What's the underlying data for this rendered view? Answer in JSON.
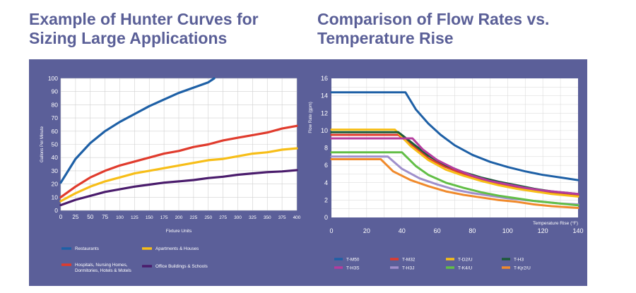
{
  "headings": {
    "left": [
      "Example of Hunter Curves for",
      "Sizing Large Applications"
    ],
    "right": [
      "Comparison of Flow Rates vs.",
      "Temperature Rise"
    ]
  },
  "chart_data": [
    {
      "type": "line",
      "xlabel": "Fixture Units",
      "ylabel": "Gallons Per Minute",
      "xlim": [
        0,
        400
      ],
      "ylim": [
        0,
        100
      ],
      "grid": true,
      "x_ticks": [
        "0",
        "25",
        "50",
        "75",
        "100",
        "125",
        "150",
        "175",
        "200",
        "225",
        "250",
        "275",
        "300",
        "325",
        "350",
        "375",
        "400"
      ],
      "y_ticks": [
        "0",
        "10",
        "20",
        "30",
        "40",
        "50",
        "60",
        "70",
        "80",
        "90",
        "100"
      ],
      "legend_position": "bottom",
      "series": [
        {
          "name": "Restaurants",
          "color": "#1e60a6",
          "x": [
            0,
            25,
            50,
            75,
            100,
            125,
            150,
            175,
            200,
            225,
            250,
            260
          ],
          "y": [
            21,
            39,
            51,
            60,
            67,
            73,
            79,
            84,
            89,
            93,
            97,
            100
          ]
        },
        {
          "name": "Hospitals, Nursing Homes, Dormitories, Hotels & Motels",
          "color": "#e03b2d",
          "x": [
            0,
            25,
            50,
            75,
            100,
            125,
            150,
            175,
            200,
            225,
            250,
            275,
            300,
            325,
            350,
            375,
            400
          ],
          "y": [
            10,
            18,
            25,
            30,
            34,
            37,
            40,
            43,
            45,
            48,
            50,
            53,
            55,
            57,
            59,
            62,
            64
          ]
        },
        {
          "name": "Apartments & Houses",
          "color": "#f7be18",
          "x": [
            0,
            25,
            50,
            75,
            100,
            125,
            150,
            175,
            200,
            225,
            250,
            275,
            300,
            325,
            350,
            375,
            400
          ],
          "y": [
            7,
            13,
            18,
            22,
            25,
            28,
            30,
            32,
            34,
            36,
            38,
            39,
            41,
            43,
            44,
            46,
            47
          ]
        },
        {
          "name": "Office Buildings & Schools",
          "color": "#4a1c6c",
          "x": [
            0,
            25,
            50,
            75,
            100,
            125,
            150,
            175,
            200,
            225,
            250,
            275,
            300,
            325,
            350,
            375,
            400
          ],
          "y": [
            4,
            8,
            11,
            14,
            16,
            18,
            19.5,
            21,
            22,
            23,
            24.5,
            25.5,
            27,
            28,
            29,
            29.5,
            30.5
          ]
        }
      ]
    },
    {
      "type": "line",
      "xlabel": "Temperature Rise (°F)",
      "ylabel": "Flow Rate (gpm)",
      "xlim": [
        0,
        140
      ],
      "ylim": [
        0,
        16
      ],
      "grid": true,
      "x_ticks": [
        "0",
        "20",
        "40",
        "60",
        "80",
        "100",
        "120",
        "140"
      ],
      "y_ticks": [
        "0",
        "2",
        "4",
        "6",
        "8",
        "10",
        "12",
        "14",
        "16"
      ],
      "legend_position": "bottom",
      "series": [
        {
          "name": "T-M50",
          "color": "#1e60a6",
          "x": [
            0,
            42,
            48,
            55,
            62,
            70,
            80,
            90,
            100,
            110,
            120,
            130,
            140
          ],
          "y": [
            14.4,
            14.4,
            12.4,
            10.8,
            9.5,
            8.3,
            7.2,
            6.4,
            5.8,
            5.3,
            4.9,
            4.6,
            4.3
          ]
        },
        {
          "name": "T-M32",
          "color": "#e03b2d",
          "x": [
            0,
            38,
            45,
            55,
            65,
            75,
            85,
            95,
            105,
            115,
            125,
            140
          ],
          "y": [
            9.5,
            9.5,
            8.4,
            6.8,
            5.8,
            5.0,
            4.4,
            3.9,
            3.5,
            3.2,
            2.9,
            2.6
          ]
        },
        {
          "name": "T-D2/U",
          "color": "#f7be18",
          "x": [
            0,
            36,
            45,
            55,
            65,
            75,
            85,
            95,
            105,
            115,
            125,
            140
          ],
          "y": [
            10.1,
            10.1,
            8.2,
            6.6,
            5.5,
            4.8,
            4.2,
            3.7,
            3.3,
            3.0,
            2.7,
            2.4
          ]
        },
        {
          "name": "T-H3",
          "color": "#1c5a3a",
          "x": [
            0,
            38,
            45,
            55,
            65,
            75,
            85,
            95,
            105,
            115,
            125,
            140
          ],
          "y": [
            9.8,
            9.8,
            8.7,
            7.1,
            6.0,
            5.2,
            4.6,
            4.1,
            3.7,
            3.3,
            3.0,
            2.7
          ]
        },
        {
          "name": "T-H3S",
          "color": "#b43c9e",
          "x": [
            0,
            46,
            52,
            60,
            70,
            80,
            90,
            100,
            110,
            120,
            130,
            140
          ],
          "y": [
            9.1,
            9.1,
            7.8,
            6.6,
            5.6,
            4.8,
            4.2,
            3.8,
            3.4,
            3.1,
            2.9,
            2.7
          ]
        },
        {
          "name": "T-H3J",
          "color": "#9f8fcb",
          "x": [
            0,
            32,
            40,
            50,
            60,
            70,
            80,
            90,
            100,
            110,
            120,
            130,
            140
          ],
          "y": [
            7.0,
            7.0,
            5.6,
            4.5,
            3.8,
            3.2,
            2.8,
            2.5,
            2.2,
            2.0,
            1.8,
            1.6,
            1.5
          ]
        },
        {
          "name": "T-K4/U",
          "color": "#62be46",
          "x": [
            0,
            40,
            48,
            55,
            65,
            75,
            85,
            95,
            105,
            115,
            125,
            140
          ],
          "y": [
            7.5,
            7.5,
            5.9,
            4.9,
            4.0,
            3.4,
            2.9,
            2.5,
            2.2,
            1.9,
            1.7,
            1.4
          ]
        },
        {
          "name": "T-Kjr2/U",
          "color": "#f08a2c",
          "x": [
            0,
            28,
            35,
            45,
            55,
            65,
            75,
            85,
            95,
            105,
            115,
            125,
            140
          ],
          "y": [
            6.7,
            6.7,
            5.3,
            4.3,
            3.6,
            3.0,
            2.6,
            2.3,
            2.0,
            1.8,
            1.5,
            1.3,
            1.1
          ]
        }
      ]
    }
  ]
}
